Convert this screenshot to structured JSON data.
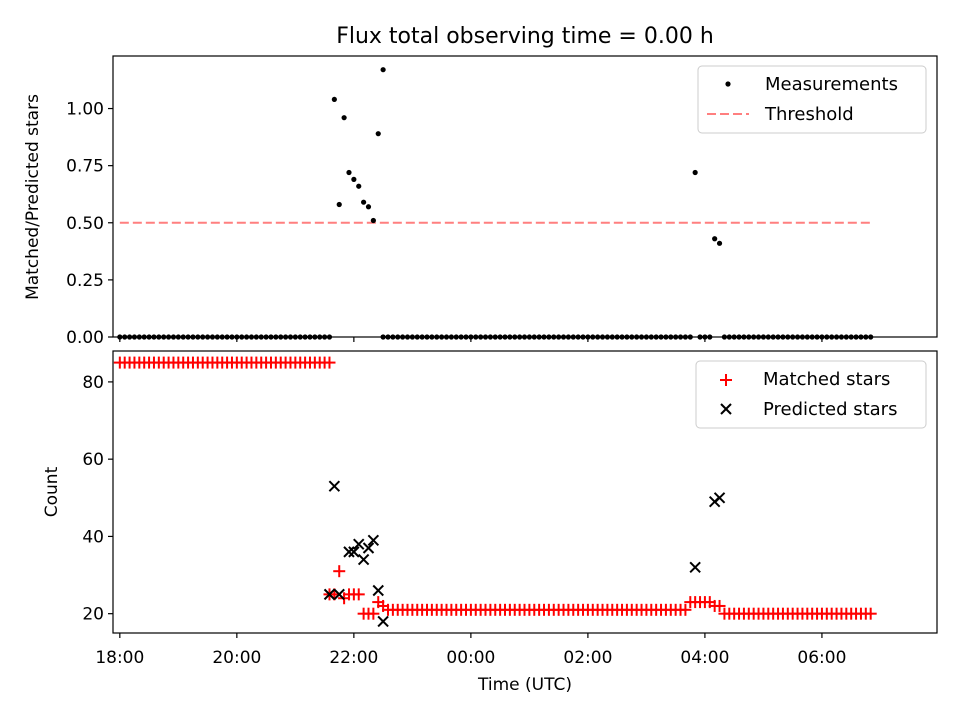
{
  "title": "Flux total observing time = 0.00 h",
  "xlabel": "Time (UTC)",
  "colors": {
    "matched": "#ff0000",
    "predicted": "#000000",
    "threshold": "#ff7f7f",
    "measurement": "#000000"
  },
  "chart_data": [
    {
      "type": "scatter",
      "ylabel": "Matched/Predicted stars",
      "xlim": [
        "17:53",
        "07:58"
      ],
      "ylim": [
        0,
        1.23
      ],
      "yticks": [
        0.0,
        0.25,
        0.5,
        0.75,
        1.0
      ],
      "ytick_labels": [
        "0.00",
        "0.25",
        "0.50",
        "0.75",
        "1.00"
      ],
      "legend": {
        "placement": "upper right",
        "entries": [
          "Measurements",
          "Threshold"
        ]
      },
      "threshold": {
        "name": "Threshold",
        "y": 0.5,
        "x_range": [
          "18:00",
          "06:50"
        ],
        "style": "dashed"
      },
      "measurements": {
        "name": "Measurements",
        "zero_segments": [
          {
            "start": "18:00",
            "end": "21:35",
            "step_min": 5
          },
          {
            "start": "22:30",
            "end": "03:45",
            "step_min": 5
          },
          {
            "start": "03:55",
            "end": "04:05",
            "step_min": 5
          },
          {
            "start": "04:20",
            "end": "06:50",
            "step_min": 5
          }
        ],
        "points": [
          {
            "x": "21:40",
            "y": 1.04
          },
          {
            "x": "21:45",
            "y": 0.58
          },
          {
            "x": "21:50",
            "y": 0.96
          },
          {
            "x": "21:55",
            "y": 0.72
          },
          {
            "x": "22:00",
            "y": 0.69
          },
          {
            "x": "22:05",
            "y": 0.66
          },
          {
            "x": "22:10",
            "y": 0.59
          },
          {
            "x": "22:15",
            "y": 0.57
          },
          {
            "x": "22:20",
            "y": 0.51
          },
          {
            "x": "22:25",
            "y": 0.89
          },
          {
            "x": "22:30",
            "y": 1.17
          },
          {
            "x": "03:50",
            "y": 0.72
          },
          {
            "x": "04:10",
            "y": 0.43
          },
          {
            "x": "04:15",
            "y": 0.41
          }
        ]
      }
    },
    {
      "type": "scatter",
      "ylabel": "Count",
      "xlim": [
        "17:53",
        "07:58"
      ],
      "ylim": [
        15,
        88
      ],
      "yticks": [
        20,
        40,
        60,
        80
      ],
      "ytick_labels": [
        "20",
        "40",
        "60",
        "80"
      ],
      "xticks": [
        "18:00",
        "20:00",
        "22:00",
        "00:00",
        "02:00",
        "04:00",
        "06:00"
      ],
      "legend": {
        "placement": "upper right",
        "entries": [
          "Matched stars",
          "Predicted stars"
        ]
      },
      "matched_stars": {
        "name": "Matched stars",
        "segments": [
          {
            "start": "18:00",
            "end": "21:35",
            "step_min": 5,
            "value": 85
          },
          {
            "start": "22:35",
            "end": "03:40",
            "step_min": 5,
            "value": 21
          },
          {
            "start": "03:45",
            "end": "04:05",
            "step_min": 5,
            "value": 23
          },
          {
            "start": "04:10",
            "end": "04:15",
            "step_min": 5,
            "value": 22
          },
          {
            "start": "04:20",
            "end": "06:50",
            "step_min": 5,
            "value": 20
          }
        ],
        "points": [
          {
            "x": "21:35",
            "y": 25
          },
          {
            "x": "21:40",
            "y": 25
          },
          {
            "x": "21:45",
            "y": 31
          },
          {
            "x": "21:50",
            "y": 24
          },
          {
            "x": "21:55",
            "y": 25
          },
          {
            "x": "22:00",
            "y": 25
          },
          {
            "x": "22:05",
            "y": 25
          },
          {
            "x": "22:10",
            "y": 20
          },
          {
            "x": "22:15",
            "y": 20
          },
          {
            "x": "22:20",
            "y": 20
          },
          {
            "x": "22:25",
            "y": 23
          },
          {
            "x": "22:30",
            "y": 22
          }
        ]
      },
      "predicted_stars": {
        "name": "Predicted stars",
        "points": [
          {
            "x": "21:35",
            "y": 25
          },
          {
            "x": "21:40",
            "y": 53
          },
          {
            "x": "21:45",
            "y": 25
          },
          {
            "x": "21:55",
            "y": 36
          },
          {
            "x": "22:00",
            "y": 36
          },
          {
            "x": "22:05",
            "y": 38
          },
          {
            "x": "22:10",
            "y": 34
          },
          {
            "x": "22:15",
            "y": 37
          },
          {
            "x": "22:20",
            "y": 39
          },
          {
            "x": "22:25",
            "y": 26
          },
          {
            "x": "22:30",
            "y": 18
          },
          {
            "x": "03:50",
            "y": 32
          },
          {
            "x": "04:10",
            "y": 49
          },
          {
            "x": "04:15",
            "y": 50
          }
        ]
      }
    }
  ]
}
